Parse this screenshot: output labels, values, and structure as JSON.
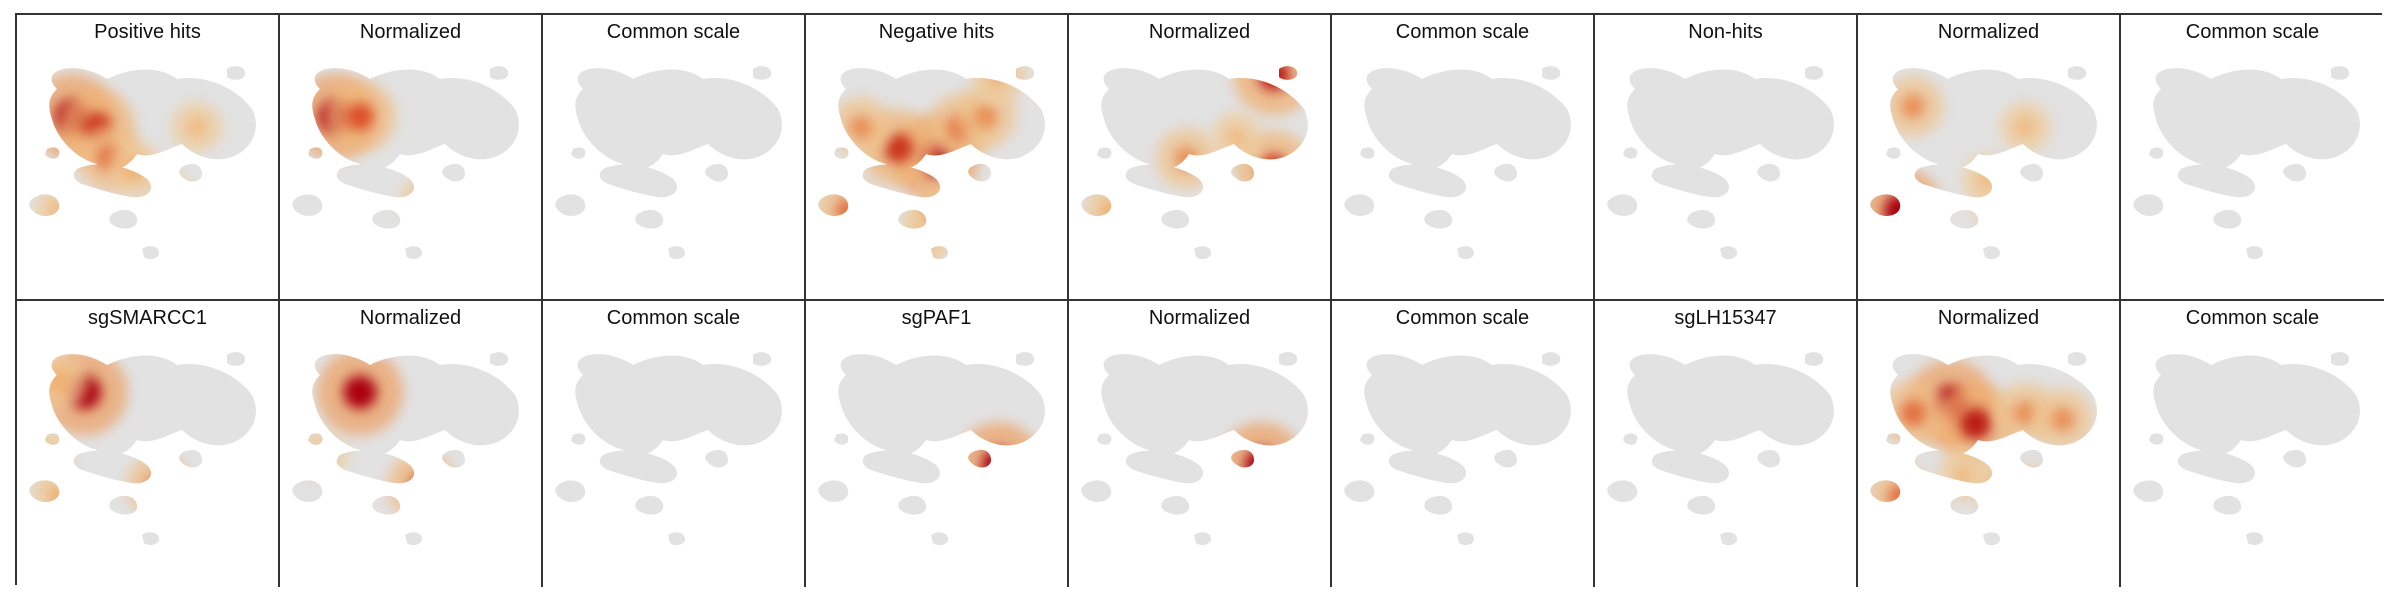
{
  "panels": [
    {
      "title": "Positive hits",
      "hot": [
        [
          0.2,
          0.3,
          1.0
        ],
        [
          0.3,
          0.35,
          0.8
        ],
        [
          0.35,
          0.5,
          0.6
        ],
        [
          0.45,
          0.55,
          0.4
        ],
        [
          0.7,
          0.35,
          0.3
        ],
        [
          0.6,
          0.7,
          0.3
        ],
        [
          0.15,
          0.75,
          0.3
        ]
      ]
    },
    {
      "title": "Normalized",
      "hot": [
        [
          0.2,
          0.3,
          1.0
        ],
        [
          0.3,
          0.3,
          0.7
        ],
        [
          0.55,
          0.7,
          0.2
        ]
      ]
    },
    {
      "title": "Common scale",
      "hot": []
    },
    {
      "title": "Negative hits",
      "hot": [
        [
          0.5,
          0.5,
          1.0
        ],
        [
          0.35,
          0.45,
          0.8
        ],
        [
          0.6,
          0.35,
          0.6
        ],
        [
          0.7,
          0.3,
          0.5
        ],
        [
          0.2,
          0.35,
          0.5
        ],
        [
          0.15,
          0.75,
          0.6
        ],
        [
          0.5,
          0.78,
          0.5
        ],
        [
          0.75,
          0.1,
          0.4
        ],
        [
          0.45,
          0.9,
          0.3
        ]
      ]
    },
    {
      "title": "Normalized",
      "hot": [
        [
          0.8,
          0.1,
          0.9
        ],
        [
          0.8,
          0.55,
          0.8
        ],
        [
          0.45,
          0.5,
          0.5
        ],
        [
          0.65,
          0.4,
          0.3
        ],
        [
          0.15,
          0.75,
          0.4
        ]
      ]
    },
    {
      "title": "Common scale",
      "hot": []
    },
    {
      "title": "Non-hits",
      "hot": []
    },
    {
      "title": "Normalized",
      "hot": [
        [
          0.15,
          0.75,
          1.0
        ],
        [
          0.2,
          0.25,
          0.5
        ],
        [
          0.5,
          0.6,
          0.3
        ],
        [
          0.65,
          0.35,
          0.3
        ],
        [
          0.55,
          0.75,
          0.3
        ]
      ]
    },
    {
      "title": "Common scale",
      "hot": []
    },
    {
      "title": "sgSMARCC1",
      "hot": [
        [
          0.25,
          0.25,
          1.0
        ],
        [
          0.15,
          0.2,
          0.4
        ],
        [
          0.55,
          0.7,
          0.6
        ],
        [
          0.15,
          0.75,
          0.4
        ],
        [
          0.1,
          0.55,
          0.3
        ]
      ]
    },
    {
      "title": "Normalized",
      "hot": [
        [
          0.3,
          0.25,
          1.0
        ],
        [
          0.55,
          0.7,
          0.7
        ],
        [
          0.15,
          0.55,
          0.3
        ]
      ]
    },
    {
      "title": "Common scale",
      "hot": []
    },
    {
      "title": "sgPAF1",
      "hot": [
        [
          0.75,
          0.6,
          1.0
        ]
      ]
    },
    {
      "title": "Normalized",
      "hot": [
        [
          0.75,
          0.6,
          1.0
        ]
      ]
    },
    {
      "title": "Common scale",
      "hot": []
    },
    {
      "title": "sgLH15347",
      "hot": []
    },
    {
      "title": "Normalized",
      "hot": [
        [
          0.35,
          0.3,
          1.0
        ],
        [
          0.45,
          0.4,
          0.9
        ],
        [
          0.2,
          0.35,
          0.6
        ],
        [
          0.65,
          0.35,
          0.5
        ],
        [
          0.8,
          0.38,
          0.5
        ],
        [
          0.15,
          0.75,
          0.6
        ],
        [
          0.4,
          0.65,
          0.3
        ],
        [
          0.55,
          0.7,
          0.4
        ],
        [
          0.7,
          0.75,
          0.5
        ]
      ]
    },
    {
      "title": "Common scale",
      "hot": []
    }
  ]
}
